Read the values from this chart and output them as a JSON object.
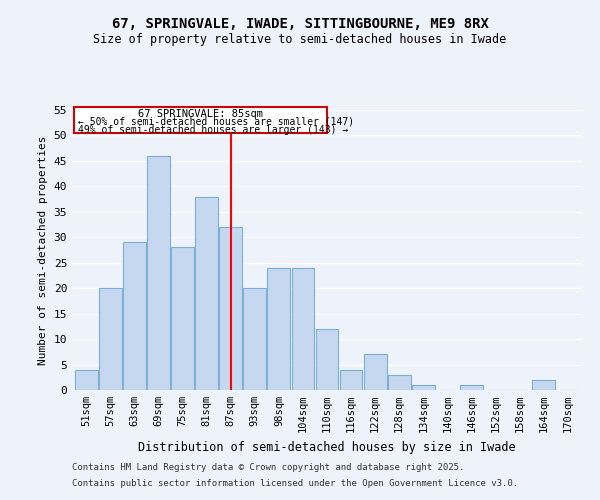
{
  "title": "67, SPRINGVALE, IWADE, SITTINGBOURNE, ME9 8RX",
  "subtitle": "Size of property relative to semi-detached houses in Iwade",
  "xlabel": "Distribution of semi-detached houses by size in Iwade",
  "ylabel": "Number of semi-detached properties",
  "bin_labels": [
    "51sqm",
    "57sqm",
    "63sqm",
    "69sqm",
    "75sqm",
    "81sqm",
    "87sqm",
    "93sqm",
    "98sqm",
    "104sqm",
    "110sqm",
    "116sqm",
    "122sqm",
    "128sqm",
    "134sqm",
    "140sqm",
    "146sqm",
    "152sqm",
    "158sqm",
    "164sqm",
    "170sqm"
  ],
  "bar_values": [
    4,
    20,
    29,
    46,
    28,
    38,
    32,
    20,
    24,
    24,
    12,
    4,
    7,
    3,
    1,
    0,
    1,
    0,
    0,
    2,
    0
  ],
  "bar_color": "#c5d8f0",
  "bar_edgecolor": "#7bafd4",
  "background_color": "#eef2fb",
  "grid_color": "#ffffff",
  "vline_color": "red",
  "annotation_title": "67 SPRINGVALE: 85sqm",
  "annotation_line1": "← 50% of semi-detached houses are smaller (147)",
  "annotation_line2": "49% of semi-detached houses are larger (143) →",
  "annotation_box_color": "#ffffff",
  "annotation_box_edgecolor": "#cc0000",
  "ylim": [
    0,
    55
  ],
  "yticks": [
    0,
    5,
    10,
    15,
    20,
    25,
    30,
    35,
    40,
    45,
    50,
    55
  ],
  "footer1": "Contains HM Land Registry data © Crown copyright and database right 2025.",
  "footer2": "Contains public sector information licensed under the Open Government Licence v3.0."
}
